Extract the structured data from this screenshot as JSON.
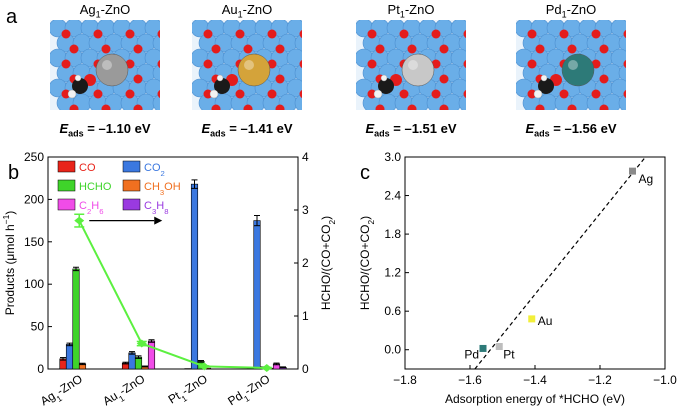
{
  "panel_a": {
    "letter": "a",
    "models": [
      {
        "title_main": "Ag",
        "title_sub": "1",
        "title_tail": "-ZnO",
        "metal_color": "#9a9a9a",
        "eads_sym": "E",
        "eads_sub": "ads",
        "eads_value": "= –1.10 eV"
      },
      {
        "title_main": "Au",
        "title_sub": "1",
        "title_tail": "-ZnO",
        "metal_color": "#d4a33a",
        "eads_sym": "E",
        "eads_sub": "ads",
        "eads_value": "= –1.41 eV"
      },
      {
        "title_main": "Pt",
        "title_sub": "1",
        "title_tail": "-ZnO",
        "metal_color": "#c8c8c8",
        "eads_sym": "E",
        "eads_sub": "ads",
        "eads_value": "= –1.51 eV"
      },
      {
        "title_main": "Pd",
        "title_sub": "1",
        "title_tail": "-ZnO",
        "metal_color": "#2d7a78",
        "eads_sym": "E",
        "eads_sub": "ads",
        "eads_value": "= –1.56 eV"
      }
    ]
  },
  "colors": {
    "CO": "#e8241a",
    "CO2": "#3b78e0",
    "HCHO": "#3fd42a",
    "CH3OH": "#f07020",
    "C2H6": "#f04ce8",
    "C3H8": "#9a3ae0",
    "line": "#5cf040",
    "tile_bg": "#6aaee8",
    "oxygen": "#e41c1c"
  },
  "chart_data": [
    {
      "type": "bar",
      "panel_letter": "b",
      "categories": [
        "Ag1-ZnO",
        "Au1-ZnO",
        "Pt1-ZnO",
        "Pd1-ZnO"
      ],
      "category_labels": [
        {
          "main": "Ag",
          "sub": "1",
          "tail": "-ZnO"
        },
        {
          "main": "Au",
          "sub": "1",
          "tail": "-ZnO"
        },
        {
          "main": "Pt",
          "sub": "1",
          "tail": "-ZnO"
        },
        {
          "main": "Pd",
          "sub": "1",
          "tail": "-ZnO"
        }
      ],
      "ylabel": "Products (μmol h",
      "ylabel_sup": "−1",
      "ylabel_tail": ")",
      "ylim": [
        0,
        250
      ],
      "yticks": [
        "0",
        "50",
        "100",
        "150",
        "200",
        "250"
      ],
      "y2label": "HCHO/(CO+CO",
      "y2label_sub": "2",
      "y2label_tail": ")",
      "y2lim": [
        0,
        4
      ],
      "y2ticks": [
        "0",
        "1",
        "2",
        "3",
        "4"
      ],
      "series": [
        {
          "name": "CO",
          "legend_main": "CO",
          "legend_sub": "",
          "legend_tail": "",
          "color_key": "CO",
          "values": [
            12,
            7,
            0.5,
            0.5
          ],
          "errors": [
            1.5,
            1,
            0,
            0
          ]
        },
        {
          "name": "CO2",
          "legend_main": "CO",
          "legend_sub": "2",
          "legend_tail": "",
          "color_key": "CO2",
          "values": [
            29,
            19,
            218,
            175
          ],
          "errors": [
            1.5,
            1.5,
            5,
            6
          ]
        },
        {
          "name": "HCHO",
          "legend_main": "HCHO",
          "legend_sub": "",
          "legend_tail": "",
          "color_key": "HCHO",
          "values": [
            118,
            14,
            9,
            2
          ],
          "errors": [
            2,
            1.5,
            1,
            0.5
          ]
        },
        {
          "name": "CH3OH",
          "legend_main": "CH",
          "legend_sub": "3",
          "legend_tail": "OH",
          "color_key": "CH3OH",
          "values": [
            6,
            3,
            1,
            1
          ],
          "errors": [
            0.8,
            0.5,
            0,
            0
          ]
        },
        {
          "name": "C2H6",
          "legend_main": "C",
          "legend_sub": "2",
          "legend_tail": "H",
          "legend_sub2": "6",
          "color_key": "C2H6",
          "values": [
            0,
            33,
            0,
            6
          ],
          "errors": [
            0,
            1.5,
            0,
            1
          ]
        },
        {
          "name": "C3H8",
          "legend_main": "C",
          "legend_sub": "3",
          "legend_tail": "H",
          "legend_sub2": "8",
          "color_key": "C3H8",
          "values": [
            0,
            0,
            0,
            2
          ],
          "errors": [
            0,
            0,
            0,
            0.5
          ]
        }
      ],
      "ratio_series": {
        "name": "HCHO/(CO+CO2)",
        "values": [
          2.8,
          0.48,
          0.05,
          0.02
        ],
        "errors": [
          0.12,
          0.04,
          0.01,
          0.01
        ]
      },
      "arrow_note": "points to right axis"
    },
    {
      "type": "scatter",
      "panel_letter": "c",
      "xlabel": "Adsorption energy of *HCHO (eV)",
      "ylabel": "HCHO/(CO+CO",
      "ylabel_sub": "2",
      "ylabel_tail": ")",
      "xlim": [
        -1.8,
        -1.0
      ],
      "ylim": [
        -0.3,
        3.0
      ],
      "xticks": [
        "−1.8",
        "−1.6",
        "−1.4",
        "−1.2",
        "−1.0"
      ],
      "yticks": [
        "0.0",
        "0.6",
        "1.2",
        "1.8",
        "2.4",
        "3.0"
      ],
      "points": [
        {
          "label": "Ag",
          "x": -1.1,
          "y": 2.78,
          "color": "#8a8a8a"
        },
        {
          "label": "Au",
          "x": -1.41,
          "y": 0.48,
          "color": "#f2ef3a"
        },
        {
          "label": "Pt",
          "x": -1.51,
          "y": 0.05,
          "color": "#bdbdbd"
        },
        {
          "label": "Pd",
          "x": -1.56,
          "y": 0.02,
          "color": "#2d7a78"
        }
      ],
      "fit_line": {
        "x1": -1.585,
        "y1": -0.3,
        "x2": -1.06,
        "y2": 3.0
      }
    }
  ]
}
